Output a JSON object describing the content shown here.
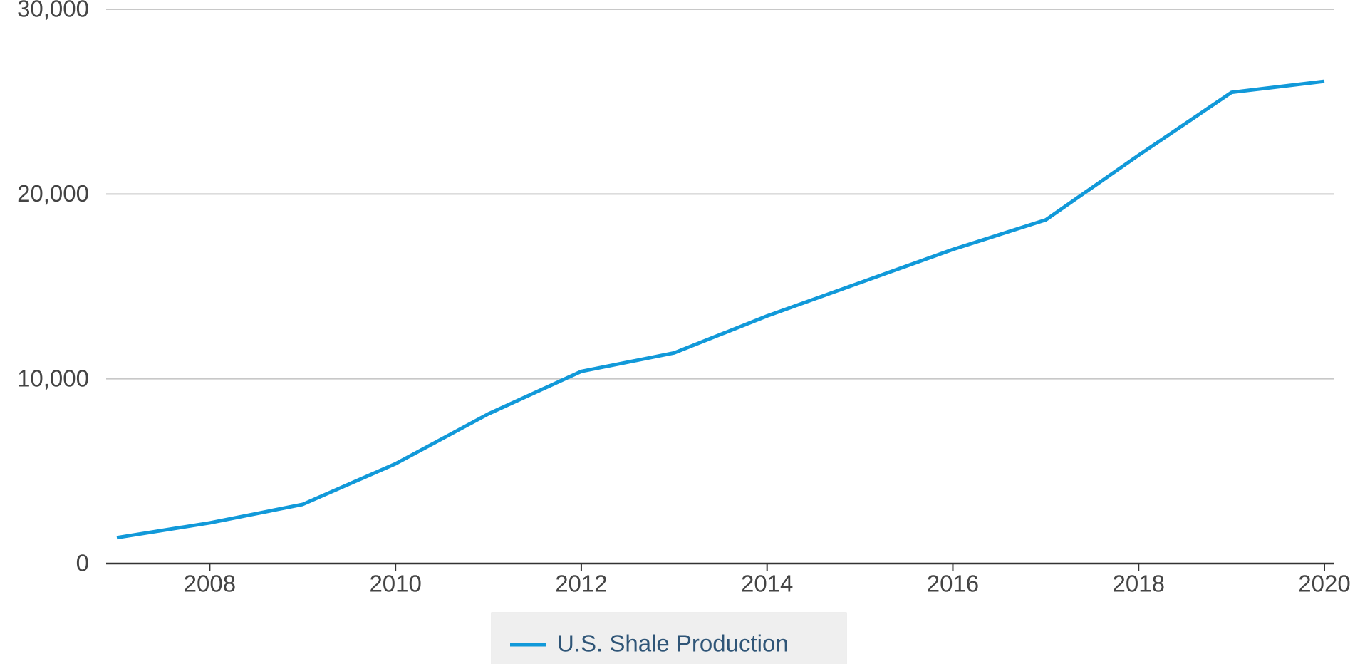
{
  "chart_data": {
    "type": "line",
    "x": [
      2007,
      2008,
      2009,
      2010,
      2011,
      2012,
      2013,
      2014,
      2015,
      2016,
      2017,
      2018,
      2019,
      2020
    ],
    "series": [
      {
        "name": "U.S. Shale Production",
        "color": "#1199d9",
        "values": [
          1400,
          2200,
          3200,
          5400,
          8100,
          10400,
          11400,
          13400,
          15200,
          17000,
          18600,
          22100,
          25500,
          26100
        ]
      }
    ],
    "xlim": [
      2007,
      2020
    ],
    "xticks": [
      2008,
      2010,
      2012,
      2014,
      2016,
      2018,
      2020
    ],
    "ylim": [
      0,
      30000
    ],
    "yticks": [
      0,
      {
        "value": 10000,
        "label": "10,000"
      },
      {
        "value": 20000,
        "label": "20,000"
      },
      {
        "value": 30000,
        "label": "30,000"
      }
    ],
    "grid": true,
    "legend": "bottom"
  }
}
